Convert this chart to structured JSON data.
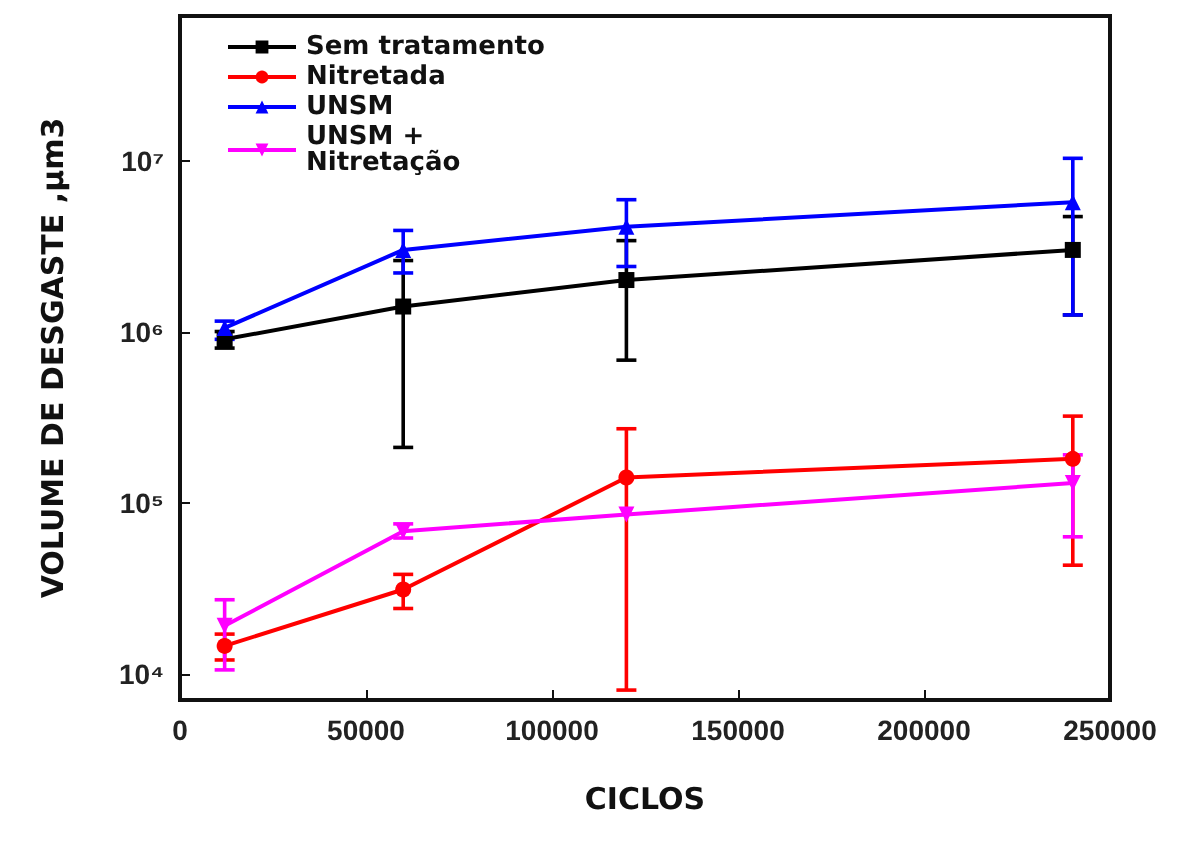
{
  "chart_data": {
    "type": "line",
    "xlabel": "CICLOS",
    "ylabel": "VOLUME DE DESGASTE ,µm3",
    "x": [
      12000,
      60000,
      120000,
      240000
    ],
    "xlim": [
      0,
      250000
    ],
    "xticks": [
      0,
      50000,
      100000,
      150000,
      200000,
      250000
    ],
    "ylim": [
      7000,
      70000000
    ],
    "log": true,
    "yticks": [
      {
        "value": 10000,
        "label": "10⁴"
      },
      {
        "value": 100000,
        "label": "10⁵"
      },
      {
        "value": 1000000,
        "label": "10⁶"
      },
      {
        "value": 10000000,
        "label": "10⁷"
      }
    ],
    "grid": false,
    "legend": "top left",
    "series": [
      {
        "name": "Sem tratamento",
        "color": "#000000",
        "marker": "square",
        "values": [
          900000,
          1400000,
          2000000,
          3000000
        ],
        "errors": [
          [
            800000,
            1000000
          ],
          [
            210000,
            2600000
          ],
          [
            680000,
            3400000
          ],
          [
            1250000,
            4700000
          ]
        ]
      },
      {
        "name": "Nitretada",
        "color": "#ff0000",
        "marker": "circle",
        "values": [
          14500,
          31000,
          140000,
          180000
        ],
        "errors": [
          [
            12000,
            17000
          ],
          [
            24000,
            38000
          ],
          [
            8000,
            270000
          ],
          [
            43000,
            320000
          ]
        ]
      },
      {
        "name": "UNSM",
        "color": "#0000ff",
        "marker": "triangle",
        "values": [
          1050000,
          3000000,
          4100000,
          5700000
        ],
        "errors": [
          [
            900000,
            1150000
          ],
          [
            2200000,
            3900000
          ],
          [
            2400000,
            5900000
          ],
          [
            1250000,
            10300000
          ]
        ]
      },
      {
        "name": "UNSM +\nNitretação",
        "color": "#ff00ff",
        "marker": "triangle-down",
        "values": [
          19000,
          68000,
          85000,
          130000
        ],
        "errors": [
          [
            10500,
            27000
          ],
          [
            62000,
            75000
          ],
          null,
          [
            63000,
            190000
          ]
        ]
      }
    ]
  }
}
